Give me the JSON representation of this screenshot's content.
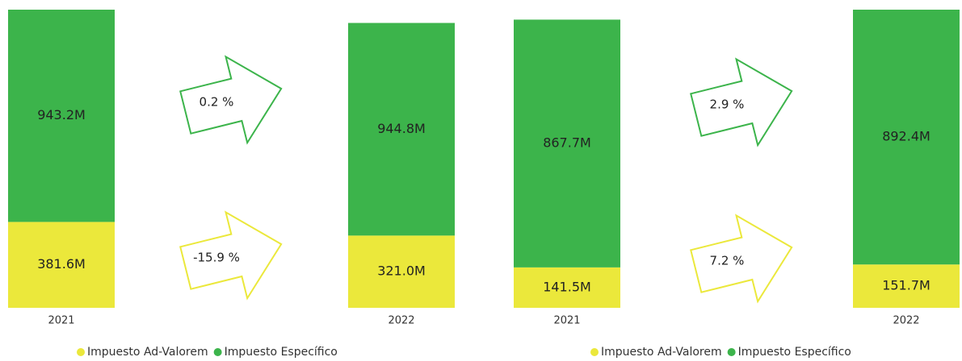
{
  "chart_data": [
    {
      "type": "bar",
      "stacked": true,
      "categories": [
        "2021",
        "2022"
      ],
      "series": [
        {
          "name": "Impuesto Ad-Valorem",
          "color": "#ebe83b",
          "values": [
            381.6,
            321.0
          ],
          "value_labels": [
            "381.6M",
            "321.0M"
          ]
        },
        {
          "name": "Impuesto Específico",
          "color": "#3cb44b",
          "values": [
            943.2,
            944.8
          ],
          "value_labels": [
            "943.2M",
            "944.8M"
          ]
        }
      ],
      "annotations": [
        "0.2 %",
        "-15.9 %"
      ]
    },
    {
      "type": "bar",
      "stacked": true,
      "categories": [
        "2021",
        "2022"
      ],
      "series": [
        {
          "name": "Impuesto Ad-Valorem",
          "color": "#ebe83b",
          "values": [
            141.5,
            151.7
          ],
          "value_labels": [
            "141.5M",
            "151.7M"
          ]
        },
        {
          "name": "Impuesto Específico",
          "color": "#3cb44b",
          "values": [
            867.7,
            892.4
          ],
          "value_labels": [
            "867.7M",
            "892.4M"
          ]
        }
      ],
      "annotations": [
        "2.9 %",
        "7.2 %"
      ]
    }
  ]
}
